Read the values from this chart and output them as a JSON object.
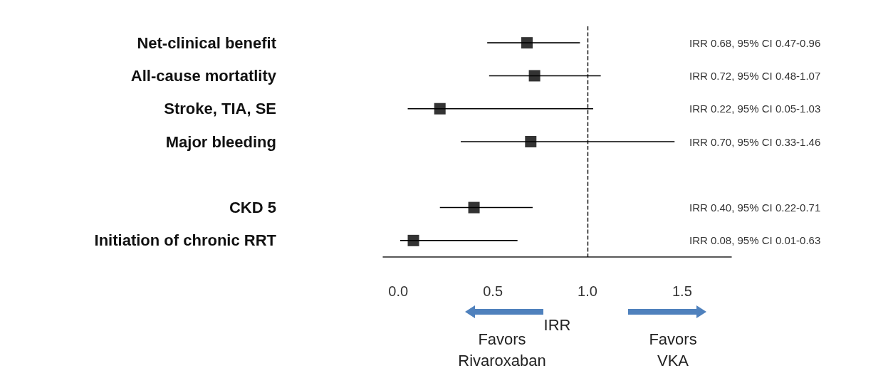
{
  "chart_data": {
    "type": "scatter",
    "orientation": "horizontal",
    "categories": [
      "Net-clinical benefit",
      "All-cause mortatlity",
      "Stroke, TIA, SE",
      "Major bleeding",
      null,
      "CKD 5",
      "Initiation of chronic RRT"
    ],
    "values": [
      0.68,
      0.72,
      0.22,
      0.7,
      null,
      0.4,
      0.08
    ],
    "errors": [
      [
        0.47,
        0.96
      ],
      [
        0.48,
        1.07
      ],
      [
        0.05,
        1.03
      ],
      [
        0.33,
        1.46
      ],
      null,
      [
        0.22,
        0.71
      ],
      [
        0.01,
        0.63
      ]
    ],
    "value_labels": [
      "IRR 0.68, 95% CI 0.47-0.96",
      "IRR 0.72, 95% CI 0.48-1.07",
      "IRR 0.22, 95% CI 0.05-1.03",
      "IRR 0.70, 95% CI 0.33-1.46",
      null,
      "IRR 0.40, 95% CI 0.22-0.71",
      "IRR 0.08, 95% CI 0.01-0.63"
    ],
    "color": "#000000",
    "marker": "square",
    "xlabel": "IRR",
    "xlim": [
      -0.08,
      1.76
    ],
    "xticks": [
      {
        "value": 0,
        "label": "0.0"
      },
      {
        "value": 0.5,
        "label": "0.5"
      },
      {
        "value": 1,
        "label": "1.0"
      },
      {
        "value": 1.5,
        "label": "1.5"
      }
    ],
    "ref_lines": [
      {
        "axis": "x",
        "value": 1,
        "line_style": "dashed",
        "color": "#000000"
      }
    ],
    "annotations": [
      "Favors Rivaroxaban",
      "Favors VKA"
    ],
    "grid": false
  }
}
